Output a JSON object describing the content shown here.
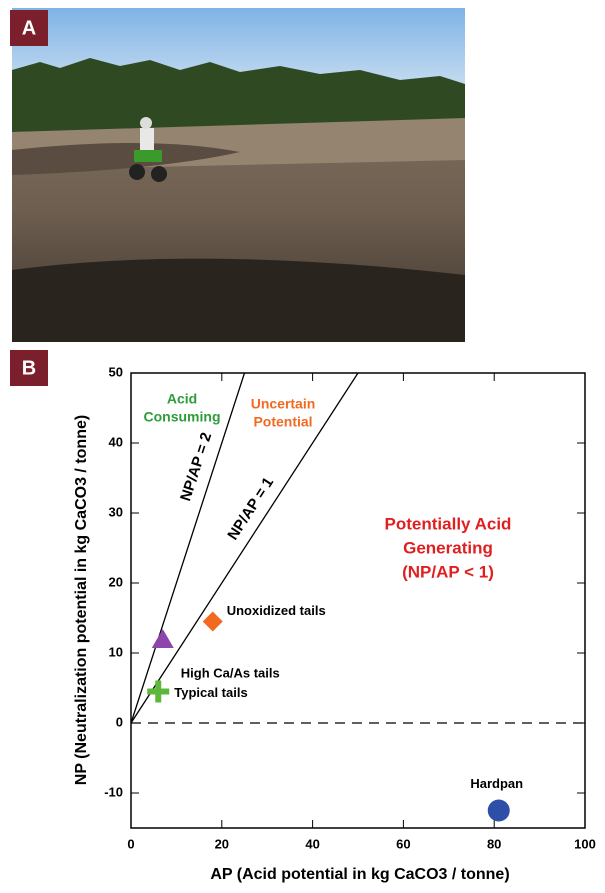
{
  "panels": [
    {
      "label": "A"
    },
    {
      "label": "B"
    }
  ],
  "chart_data": {
    "type": "scatter",
    "xlabel": "AP (Acid potential in kg CaCO3 / tonne)",
    "ylabel": "NP (Neutralization potential in kg CaCO3 / tonne)",
    "xlim": [
      0,
      100
    ],
    "ylim": [
      -15,
      50
    ],
    "xticks": [
      0,
      20,
      40,
      60,
      80,
      100
    ],
    "yticks": [
      -10,
      0,
      10,
      20,
      30,
      40,
      50
    ],
    "series": [
      {
        "name": "Unoxidized tails",
        "color": "#f26a21",
        "marker": "diamond",
        "x": [
          18
        ],
        "y": [
          14.5
        ]
      },
      {
        "name": "High Ca/As tails",
        "color": "#8e44ad",
        "marker": "triangle",
        "x": [
          7
        ],
        "y": [
          12
        ]
      },
      {
        "name": "Typical tails",
        "color": "#5cb83a",
        "marker": "plus",
        "x": [
          6
        ],
        "y": [
          4.5
        ]
      },
      {
        "name": "Hardpan",
        "color": "#2e4fa8",
        "marker": "circle",
        "x": [
          81
        ],
        "y": [
          -12.5
        ]
      }
    ],
    "reference_lines": [
      {
        "label": "NP/AP = 2",
        "ratio": 2
      },
      {
        "label": "NP/AP = 1",
        "ratio": 1
      }
    ],
    "annotations": [
      {
        "lines": [
          "Acid",
          "Consuming"
        ],
        "color": "#2e9c3a"
      },
      {
        "lines": [
          "Uncertain",
          "Potential"
        ],
        "color": "#f26a21"
      },
      {
        "lines": [
          "Potentially Acid",
          "Generating",
          "(NP/AP < 1)"
        ],
        "color": "#e02020"
      }
    ]
  }
}
